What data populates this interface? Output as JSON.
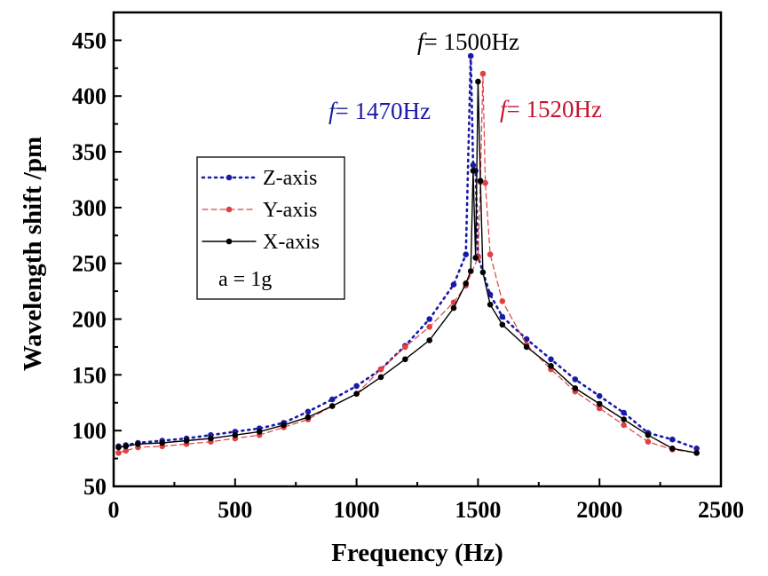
{
  "chart_data": {
    "type": "line",
    "xlabel": "Frequency (Hz)",
    "ylabel": "Wavelength shift /pm",
    "xlim": [
      0,
      2500
    ],
    "ylim": [
      50,
      475
    ],
    "xticks": [
      0,
      500,
      1000,
      1500,
      2000,
      2500
    ],
    "yticks": [
      50,
      100,
      150,
      200,
      250,
      300,
      350,
      400,
      450
    ],
    "grid": false,
    "legend_position": "upper-left",
    "legend_note": "a = 1g",
    "annotations": [
      {
        "prefix": "f",
        "text": "= 1500Hz",
        "color": "#000000"
      },
      {
        "prefix": "f",
        "text": "= 1470Hz",
        "color": "#1a1aa8"
      },
      {
        "prefix": "f",
        "text": "= 1520Hz",
        "color": "#c8102e"
      }
    ],
    "series": [
      {
        "name": "Z-axis",
        "color": "#1a1aa8",
        "style": "dotted",
        "x": [
          20,
          50,
          100,
          200,
          300,
          400,
          500,
          600,
          700,
          800,
          900,
          1000,
          1100,
          1200,
          1300,
          1400,
          1450,
          1470,
          1480,
          1490,
          1500,
          1550,
          1600,
          1700,
          1800,
          1900,
          2000,
          2100,
          2200,
          2300,
          2400
        ],
        "y": [
          86,
          87,
          89,
          91,
          93,
          96,
          99,
          102,
          107,
          117,
          128,
          140,
          155,
          176,
          200,
          231,
          258,
          436,
          338,
          333,
          256,
          222,
          202,
          182,
          164,
          146,
          131,
          116,
          98,
          92,
          84
        ]
      },
      {
        "name": "Y-axis",
        "color": "#e04040",
        "style": "dashed",
        "x": [
          20,
          50,
          100,
          200,
          300,
          400,
          500,
          600,
          700,
          800,
          900,
          1000,
          1100,
          1200,
          1300,
          1400,
          1450,
          1500,
          1510,
          1520,
          1530,
          1550,
          1600,
          1700,
          1800,
          1900,
          2000,
          2100,
          2200,
          2300,
          2400
        ],
        "y": [
          80,
          82,
          85,
          86,
          88,
          90,
          93,
          96,
          103,
          110,
          122,
          133,
          155,
          175,
          193,
          215,
          230,
          255,
          323,
          420,
          322,
          258,
          216,
          177,
          155,
          135,
          120,
          105,
          90,
          83,
          80
        ]
      },
      {
        "name": "X-axis",
        "color": "#000000",
        "style": "solid",
        "x": [
          20,
          50,
          100,
          200,
          300,
          400,
          500,
          600,
          700,
          800,
          900,
          1000,
          1100,
          1200,
          1300,
          1400,
          1450,
          1470,
          1480,
          1490,
          1500,
          1510,
          1520,
          1550,
          1600,
          1700,
          1800,
          1900,
          2000,
          2100,
          2200,
          2300,
          2400
        ],
        "y": [
          85,
          86,
          88,
          89,
          91,
          93,
          96,
          99,
          105,
          112,
          122,
          133,
          148,
          164,
          181,
          210,
          232,
          243,
          333,
          255,
          413,
          324,
          242,
          213,
          195,
          175,
          158,
          138,
          124,
          110,
          96,
          84,
          80
        ]
      }
    ]
  }
}
